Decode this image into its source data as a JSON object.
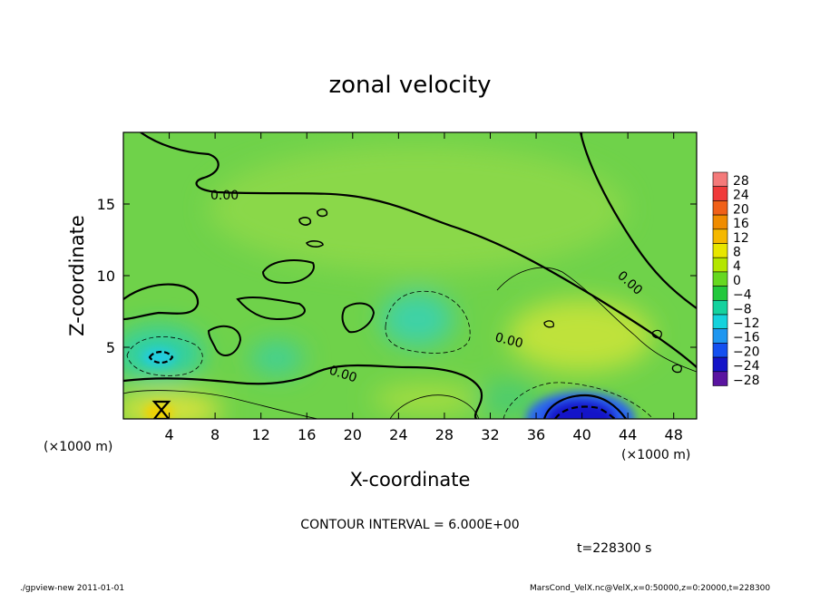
{
  "chart_data": {
    "type": "heatmap",
    "title": "zonal velocity",
    "xlabel": "X-coordinate",
    "ylabel": "Z-coordinate",
    "x_unit": "(×1000 m)",
    "y_unit": "(×1000 m)",
    "xlim": [
      0,
      50
    ],
    "ylim": [
      0,
      20
    ],
    "x_ticks": [
      4,
      8,
      12,
      16,
      20,
      24,
      28,
      32,
      36,
      40,
      44,
      48
    ],
    "y_ticks": [
      5,
      10,
      15
    ],
    "colorbar": {
      "levels": [
        28,
        24,
        20,
        16,
        12,
        8,
        4,
        0,
        -4,
        -8,
        -12,
        -16,
        -20,
        -24,
        -28
      ],
      "colors": [
        "#f47a7a",
        "#f03a3a",
        "#f06018",
        "#f08c00",
        "#f5b800",
        "#e8e600",
        "#b4e600",
        "#66d820",
        "#22c83c",
        "#14d29e",
        "#14d2dc",
        "#1e96f0",
        "#1450f0",
        "#1414c8",
        "#5a14a0"
      ]
    },
    "contour_labels": [
      "0.00",
      "0.00",
      "0.00",
      "0.00"
    ],
    "contour_interval": "CONTOUR INTERVAL = 6.000E+00",
    "time": "t=228300 s"
  },
  "footer": {
    "left": "./gpview-new   2011-01-01",
    "right": "MarsCond_VelX.nc@VelX,x=0:50000,z=0:20000,t=228300"
  }
}
